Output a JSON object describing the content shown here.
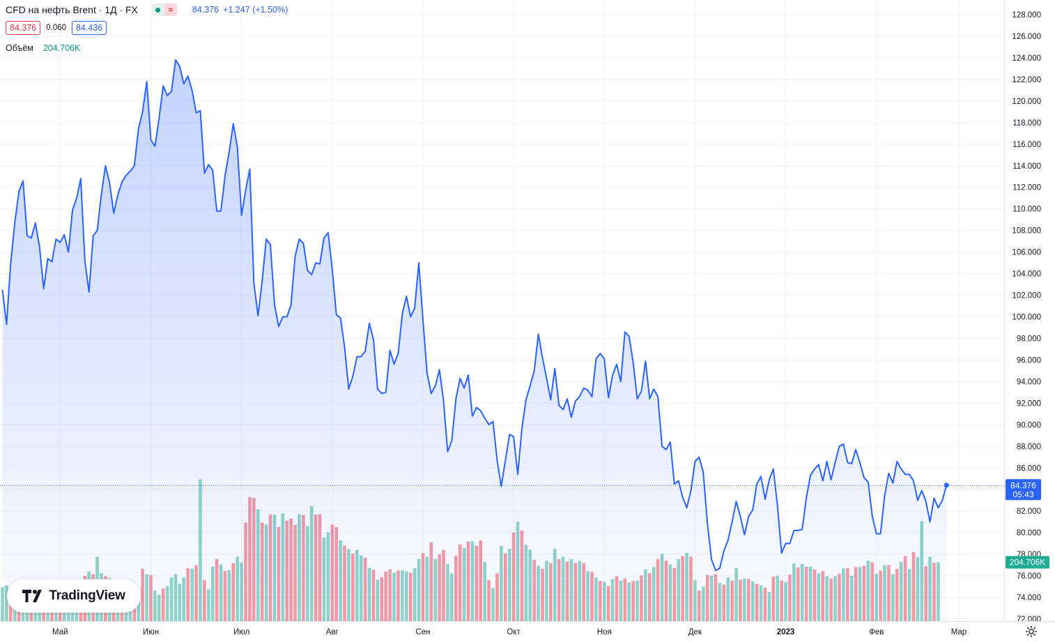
{
  "header": {
    "symbol_title": "CFD на нефть Brent · 1Д · FX",
    "last_price": "84.376",
    "change": "+1.247 (+1.50%)",
    "bid": "84.376",
    "spread": "0.060",
    "ask": "84.436",
    "volume_title": "Объём",
    "volume_value": "204.706K",
    "status_icon": "market-open-dot-icon",
    "data_icon": "delayed-data-icon"
  },
  "price_label": {
    "value": "84.376",
    "countdown": "05:43"
  },
  "volume_label": "204.706K",
  "logo": {
    "text": "TradingView",
    "icon": "tradingview-logo-icon"
  },
  "settings_icon": "gear-icon",
  "colors": {
    "line": "#2962ff",
    "area": "#2962ff",
    "volume_up": "#22ab94",
    "volume_down": "#f23645",
    "grid": "#f0f3fa",
    "text": "#131722"
  },
  "chart_data": {
    "type": "area",
    "title": "CFD на нефть Brent · 1Д · FX",
    "xlabel": "",
    "ylabel": "",
    "ylim": [
      72,
      128
    ],
    "y_ticks": [
      "72.000",
      "74.000",
      "76.000",
      "78.000",
      "80.000",
      "82.000",
      "84.000",
      "86.000",
      "88.000",
      "90.000",
      "92.000",
      "94.000",
      "96.000",
      "98.000",
      "100.000",
      "102.000",
      "104.000",
      "106.000",
      "108.000",
      "110.000",
      "112.000",
      "114.000",
      "116.000",
      "118.000",
      "120.000",
      "122.000",
      "124.000",
      "126.000",
      "128.000"
    ],
    "x_ticks": [
      {
        "label": "Май",
        "index": 14
      },
      {
        "label": "Июн",
        "index": 36
      },
      {
        "label": "Июл",
        "index": 58
      },
      {
        "label": "Авг",
        "index": 80
      },
      {
        "label": "Сен",
        "index": 102
      },
      {
        "label": "Окт",
        "index": 124
      },
      {
        "label": "Ноя",
        "index": 146
      },
      {
        "label": "Дек",
        "index": 168
      },
      {
        "label": "2023",
        "index": 190,
        "bold": true
      },
      {
        "label": "Фев",
        "index": 212
      },
      {
        "label": "Мар",
        "index": 232
      }
    ],
    "series": [
      {
        "values": [
          102.5,
          99.3,
          104.9,
          108.7,
          111.6,
          112.6,
          107.5,
          107.3,
          108.7,
          106.5,
          102.6,
          105.4,
          105.1,
          107.2,
          106.9,
          107.6,
          106.0,
          109.9,
          111.0,
          112.8,
          105.2,
          102.3,
          107.5,
          108.0,
          111.4,
          114.0,
          112.4,
          109.6,
          111.3,
          112.5,
          113.1,
          113.5,
          114.0,
          117.4,
          119.0,
          121.8,
          116.4,
          115.8,
          118.4,
          121.4,
          120.5,
          120.9,
          123.8,
          123.2,
          121.6,
          122.3,
          121.0,
          118.9,
          119.1,
          113.3,
          114.1,
          113.6,
          109.8,
          109.8,
          113.1,
          115.3,
          117.9,
          115.7,
          109.4,
          111.7,
          113.7,
          103.1,
          100.1,
          103.3,
          107.2,
          106.7,
          101.1,
          99.1,
          100.0,
          100.0,
          101.1,
          105.6,
          107.2,
          106.8,
          104.3,
          103.9,
          105.0,
          104.9,
          107.3,
          107.8,
          104.4,
          100.2,
          99.9,
          97.2,
          93.3,
          94.5,
          96.3,
          96.3,
          96.8,
          99.4,
          97.9,
          93.3,
          92.9,
          93.0,
          96.9,
          95.6,
          96.6,
          100.3,
          101.9,
          100.0,
          100.8,
          105.0,
          99.8,
          94.8,
          92.9,
          93.6,
          95.1,
          92.2,
          87.5,
          88.5,
          92.4,
          94.3,
          93.4,
          94.6,
          90.8,
          91.6,
          91.3,
          90.6,
          90.0,
          90.3,
          86.7,
          84.3,
          86.7,
          89.1,
          88.9,
          85.4,
          89.6,
          92.3,
          93.6,
          95.0,
          98.4,
          96.2,
          94.3,
          92.3,
          95.2,
          91.8,
          91.4,
          92.4,
          90.7,
          92.2,
          92.6,
          93.4,
          93.2,
          92.6,
          96.1,
          96.6,
          96.1,
          92.5,
          94.6,
          95.6,
          94.0,
          98.6,
          98.2,
          95.8,
          92.4,
          93.1,
          95.9,
          92.4,
          93.3,
          92.6,
          88.0,
          87.7,
          88.4,
          84.5,
          84.8,
          83.3,
          82.3,
          83.9,
          86.6,
          87.0,
          85.6,
          80.9,
          77.5,
          76.5,
          76.7,
          78.3,
          79.3,
          81.0,
          82.9,
          81.5,
          79.8,
          81.5,
          82.1,
          84.5,
          85.2,
          83.1,
          84.9,
          85.9,
          82.5,
          78.1,
          79.0,
          79.0,
          80.2,
          80.2,
          80.3,
          83.2,
          85.3,
          85.9,
          86.3,
          84.8,
          86.6,
          84.9,
          86.5,
          88.0,
          88.2,
          86.5,
          86.4,
          87.7,
          86.5,
          85.1,
          84.7,
          81.5,
          79.9,
          79.9,
          83.4,
          85.5,
          84.6,
          86.6,
          85.9,
          85.4,
          85.4,
          84.8,
          83.0,
          83.9,
          82.9,
          81.0,
          83.2,
          82.3,
          83.0,
          84.4
        ]
      }
    ],
    "volume": [
      {
        "v": 8.5,
        "up": true
      },
      {
        "v": 9.0,
        "up": true
      },
      {
        "v": 8.5,
        "up": false
      },
      {
        "v": 8.3,
        "up": true
      },
      {
        "v": 8.1,
        "up": false
      },
      {
        "v": 7.6,
        "up": true
      },
      {
        "v": 8.5,
        "up": true
      },
      {
        "v": 8.7,
        "up": false
      },
      {
        "v": 7.4,
        "up": true
      },
      {
        "v": 7.4,
        "up": true
      },
      {
        "v": 6.6,
        "up": false
      },
      {
        "v": 8.0,
        "up": true
      },
      {
        "v": 7.6,
        "up": false
      },
      {
        "v": 7.2,
        "up": true
      },
      {
        "v": 7.6,
        "up": false
      },
      {
        "v": 6.4,
        "up": true
      },
      {
        "v": 5.9,
        "up": true
      },
      {
        "v": 7.6,
        "up": true
      },
      {
        "v": 9.7,
        "up": true
      },
      {
        "v": 6.8,
        "up": false
      },
      {
        "v": 11.4,
        "up": false
      },
      {
        "v": 12.5,
        "up": true
      },
      {
        "v": 11.8,
        "up": false
      },
      {
        "v": 16.2,
        "up": true
      },
      {
        "v": 12.1,
        "up": true
      },
      {
        "v": 11.3,
        "up": false
      },
      {
        "v": 10.8,
        "up": true
      },
      {
        "v": 9.8,
        "up": false
      },
      {
        "v": 9.1,
        "up": true
      },
      {
        "v": 9.3,
        "up": false
      },
      {
        "v": 8.2,
        "up": true
      },
      {
        "v": 7.8,
        "up": true
      },
      {
        "v": 6.7,
        "up": false
      },
      {
        "v": 5.6,
        "up": true
      },
      {
        "v": 13.2,
        "up": false
      },
      {
        "v": 11.8,
        "up": true
      },
      {
        "v": 11.6,
        "up": false
      },
      {
        "v": 7.7,
        "up": true
      },
      {
        "v": 6.6,
        "up": true
      },
      {
        "v": 8.2,
        "up": false
      },
      {
        "v": 8.8,
        "up": true
      },
      {
        "v": 11.0,
        "up": true
      },
      {
        "v": 11.8,
        "up": true
      },
      {
        "v": 9.4,
        "up": true
      },
      {
        "v": 11.0,
        "up": true
      },
      {
        "v": 13.3,
        "up": false
      },
      {
        "v": 13.2,
        "up": true
      },
      {
        "v": 14.1,
        "up": false
      },
      {
        "v": 35.7,
        "up": true
      },
      {
        "v": 10.3,
        "up": false
      },
      {
        "v": 8.0,
        "up": true
      },
      {
        "v": 13.7,
        "up": true
      },
      {
        "v": 15.6,
        "up": false
      },
      {
        "v": 14.2,
        "up": true
      },
      {
        "v": 12.6,
        "up": false
      },
      {
        "v": 12.8,
        "up": true
      },
      {
        "v": 14.6,
        "up": false
      },
      {
        "v": 16.2,
        "up": true
      },
      {
        "v": 14.8,
        "up": true
      },
      {
        "v": 24.8,
        "up": false
      },
      {
        "v": 31.2,
        "up": false
      },
      {
        "v": 31.0,
        "up": false
      },
      {
        "v": 28.1,
        "up": true
      },
      {
        "v": 24.8,
        "up": false
      },
      {
        "v": 24.3,
        "up": true
      },
      {
        "v": 26.8,
        "up": false
      },
      {
        "v": 26.8,
        "up": true
      },
      {
        "v": 23.7,
        "up": false
      },
      {
        "v": 27.1,
        "up": true
      },
      {
        "v": 25.3,
        "up": false
      },
      {
        "v": 25.8,
        "up": false
      },
      {
        "v": 24.2,
        "up": false
      },
      {
        "v": 26.9,
        "up": true
      },
      {
        "v": 26.7,
        "up": false
      },
      {
        "v": 23.9,
        "up": true
      },
      {
        "v": 29.0,
        "up": true
      },
      {
        "v": 26.8,
        "up": false
      },
      {
        "v": 26.9,
        "up": false
      },
      {
        "v": 21.0,
        "up": true
      },
      {
        "v": 22.3,
        "up": true
      },
      {
        "v": 24.3,
        "up": false
      },
      {
        "v": 23.6,
        "up": false
      },
      {
        "v": 20.3,
        "up": true
      },
      {
        "v": 19.0,
        "up": false
      },
      {
        "v": 18.1,
        "up": true
      },
      {
        "v": 17.0,
        "up": false
      },
      {
        "v": 17.9,
        "up": true
      },
      {
        "v": 16.5,
        "up": true
      },
      {
        "v": 16.0,
        "up": false
      },
      {
        "v": 13.4,
        "up": true
      },
      {
        "v": 12.9,
        "up": false
      },
      {
        "v": 10.4,
        "up": true
      },
      {
        "v": 11.0,
        "up": false
      },
      {
        "v": 12.5,
        "up": false
      },
      {
        "v": 13.0,
        "up": false
      },
      {
        "v": 12.2,
        "up": true
      },
      {
        "v": 12.7,
        "up": false
      },
      {
        "v": 12.8,
        "up": true
      },
      {
        "v": 12.5,
        "up": true
      },
      {
        "v": 12.2,
        "up": false
      },
      {
        "v": 13.3,
        "up": true
      },
      {
        "v": 15.6,
        "up": true
      },
      {
        "v": 17.1,
        "up": false
      },
      {
        "v": 16.2,
        "up": true
      },
      {
        "v": 19.8,
        "up": false
      },
      {
        "v": 15.6,
        "up": true
      },
      {
        "v": 16.8,
        "up": false
      },
      {
        "v": 17.9,
        "up": false
      },
      {
        "v": 14.4,
        "up": true
      },
      {
        "v": 12.0,
        "up": true
      },
      {
        "v": 16.4,
        "up": false
      },
      {
        "v": 19.3,
        "up": false
      },
      {
        "v": 18.4,
        "up": true
      },
      {
        "v": 20.0,
        "up": false
      },
      {
        "v": 20.1,
        "up": true
      },
      {
        "v": 19.0,
        "up": false
      },
      {
        "v": 20.3,
        "up": false
      },
      {
        "v": 14.9,
        "up": true
      },
      {
        "v": 10.3,
        "up": false
      },
      {
        "v": 8.3,
        "up": true
      },
      {
        "v": 12.0,
        "up": false
      },
      {
        "v": 18.9,
        "up": true
      },
      {
        "v": 17.0,
        "up": false
      },
      {
        "v": 18.2,
        "up": true
      },
      {
        "v": 22.3,
        "up": false
      },
      {
        "v": 25.0,
        "up": true
      },
      {
        "v": 22.8,
        "up": false
      },
      {
        "v": 19.2,
        "up": true
      },
      {
        "v": 18.0,
        "up": true
      },
      {
        "v": 15.4,
        "up": false
      },
      {
        "v": 13.9,
        "up": true
      },
      {
        "v": 13.2,
        "up": false
      },
      {
        "v": 15.2,
        "up": true
      },
      {
        "v": 14.6,
        "up": false
      },
      {
        "v": 18.2,
        "up": true
      },
      {
        "v": 15.6,
        "up": false
      },
      {
        "v": 16.2,
        "up": true
      },
      {
        "v": 15.0,
        "up": false
      },
      {
        "v": 15.6,
        "up": true
      },
      {
        "v": 14.6,
        "up": false
      },
      {
        "v": 15.1,
        "up": true
      },
      {
        "v": 14.6,
        "up": false
      },
      {
        "v": 12.6,
        "up": true
      },
      {
        "v": 12.4,
        "up": false
      },
      {
        "v": 11.0,
        "up": true
      },
      {
        "v": 10.1,
        "up": false
      },
      {
        "v": 9.9,
        "up": true
      },
      {
        "v": 8.8,
        "up": false
      },
      {
        "v": 10.6,
        "up": true
      },
      {
        "v": 11.3,
        "up": false
      },
      {
        "v": 10.2,
        "up": true
      },
      {
        "v": 10.7,
        "up": false
      },
      {
        "v": 9.7,
        "up": true
      },
      {
        "v": 10.1,
        "up": false
      },
      {
        "v": 10.2,
        "up": true
      },
      {
        "v": 11.5,
        "up": false
      },
      {
        "v": 13.0,
        "up": true
      },
      {
        "v": 12.1,
        "up": false
      },
      {
        "v": 13.6,
        "up": true
      },
      {
        "v": 15.6,
        "up": false
      },
      {
        "v": 16.9,
        "up": true
      },
      {
        "v": 15.2,
        "up": false
      },
      {
        "v": 14.3,
        "up": true
      },
      {
        "v": 13.4,
        "up": false
      },
      {
        "v": 15.6,
        "up": true
      },
      {
        "v": 16.4,
        "up": false
      },
      {
        "v": 17.2,
        "up": true
      },
      {
        "v": 16.2,
        "up": false
      },
      {
        "v": 10.3,
        "up": true
      },
      {
        "v": 7.7,
        "up": false
      },
      {
        "v": 8.7,
        "up": true
      },
      {
        "v": 11.6,
        "up": false
      },
      {
        "v": 11.4,
        "up": true
      },
      {
        "v": 11.8,
        "up": false
      },
      {
        "v": 9.6,
        "up": true
      },
      {
        "v": 9.2,
        "up": false
      },
      {
        "v": 11.0,
        "up": true
      },
      {
        "v": 10.2,
        "up": false
      },
      {
        "v": 13.4,
        "up": true
      },
      {
        "v": 10.4,
        "up": false
      },
      {
        "v": 10.7,
        "up": true
      },
      {
        "v": 10.6,
        "up": false
      },
      {
        "v": 10.0,
        "up": true
      },
      {
        "v": 9.4,
        "up": false
      },
      {
        "v": 9.0,
        "up": true
      },
      {
        "v": 8.4,
        "up": false
      },
      {
        "v": 7.3,
        "up": true
      },
      {
        "v": 11.2,
        "up": false
      },
      {
        "v": 11.4,
        "up": true
      },
      {
        "v": 10.2,
        "up": false
      },
      {
        "v": 9.8,
        "up": true
      },
      {
        "v": 11.7,
        "up": false
      },
      {
        "v": 14.5,
        "up": true
      },
      {
        "v": 13.5,
        "up": false
      },
      {
        "v": 14.4,
        "up": true
      },
      {
        "v": 13.7,
        "up": false
      },
      {
        "v": 13.7,
        "up": true
      },
      {
        "v": 13.0,
        "up": false
      },
      {
        "v": 12.0,
        "up": true
      },
      {
        "v": 12.6,
        "up": false
      },
      {
        "v": 11.3,
        "up": true
      },
      {
        "v": 10.7,
        "up": false
      },
      {
        "v": 11.3,
        "up": true
      },
      {
        "v": 11.9,
        "up": false
      },
      {
        "v": 13.3,
        "up": true
      },
      {
        "v": 13.3,
        "up": false
      },
      {
        "v": 11.4,
        "up": true
      },
      {
        "v": 13.6,
        "up": false
      },
      {
        "v": 13.6,
        "up": true
      },
      {
        "v": 13.9,
        "up": false
      },
      {
        "v": 15.2,
        "up": true
      },
      {
        "v": 14.8,
        "up": false
      },
      {
        "v": 11.9,
        "up": true
      },
      {
        "v": 12.7,
        "up": false
      },
      {
        "v": 14.1,
        "up": true
      },
      {
        "v": 14.1,
        "up": false
      },
      {
        "v": 11.8,
        "up": true
      },
      {
        "v": 13.1,
        "up": false
      },
      {
        "v": 14.9,
        "up": true
      },
      {
        "v": 16.4,
        "up": false
      },
      {
        "v": 13.1,
        "up": true
      },
      {
        "v": 17.4,
        "up": false
      },
      {
        "v": 16.1,
        "up": true
      },
      {
        "v": 25.1,
        "up": true
      },
      {
        "v": 13.8,
        "up": false
      },
      {
        "v": 16.2,
        "up": true
      },
      {
        "v": 14.7,
        "up": false
      },
      {
        "v": 14.8,
        "up": true
      }
    ],
    "volume_max": 40,
    "last": {
      "value": 84.376,
      "volume": "204.706K"
    }
  }
}
